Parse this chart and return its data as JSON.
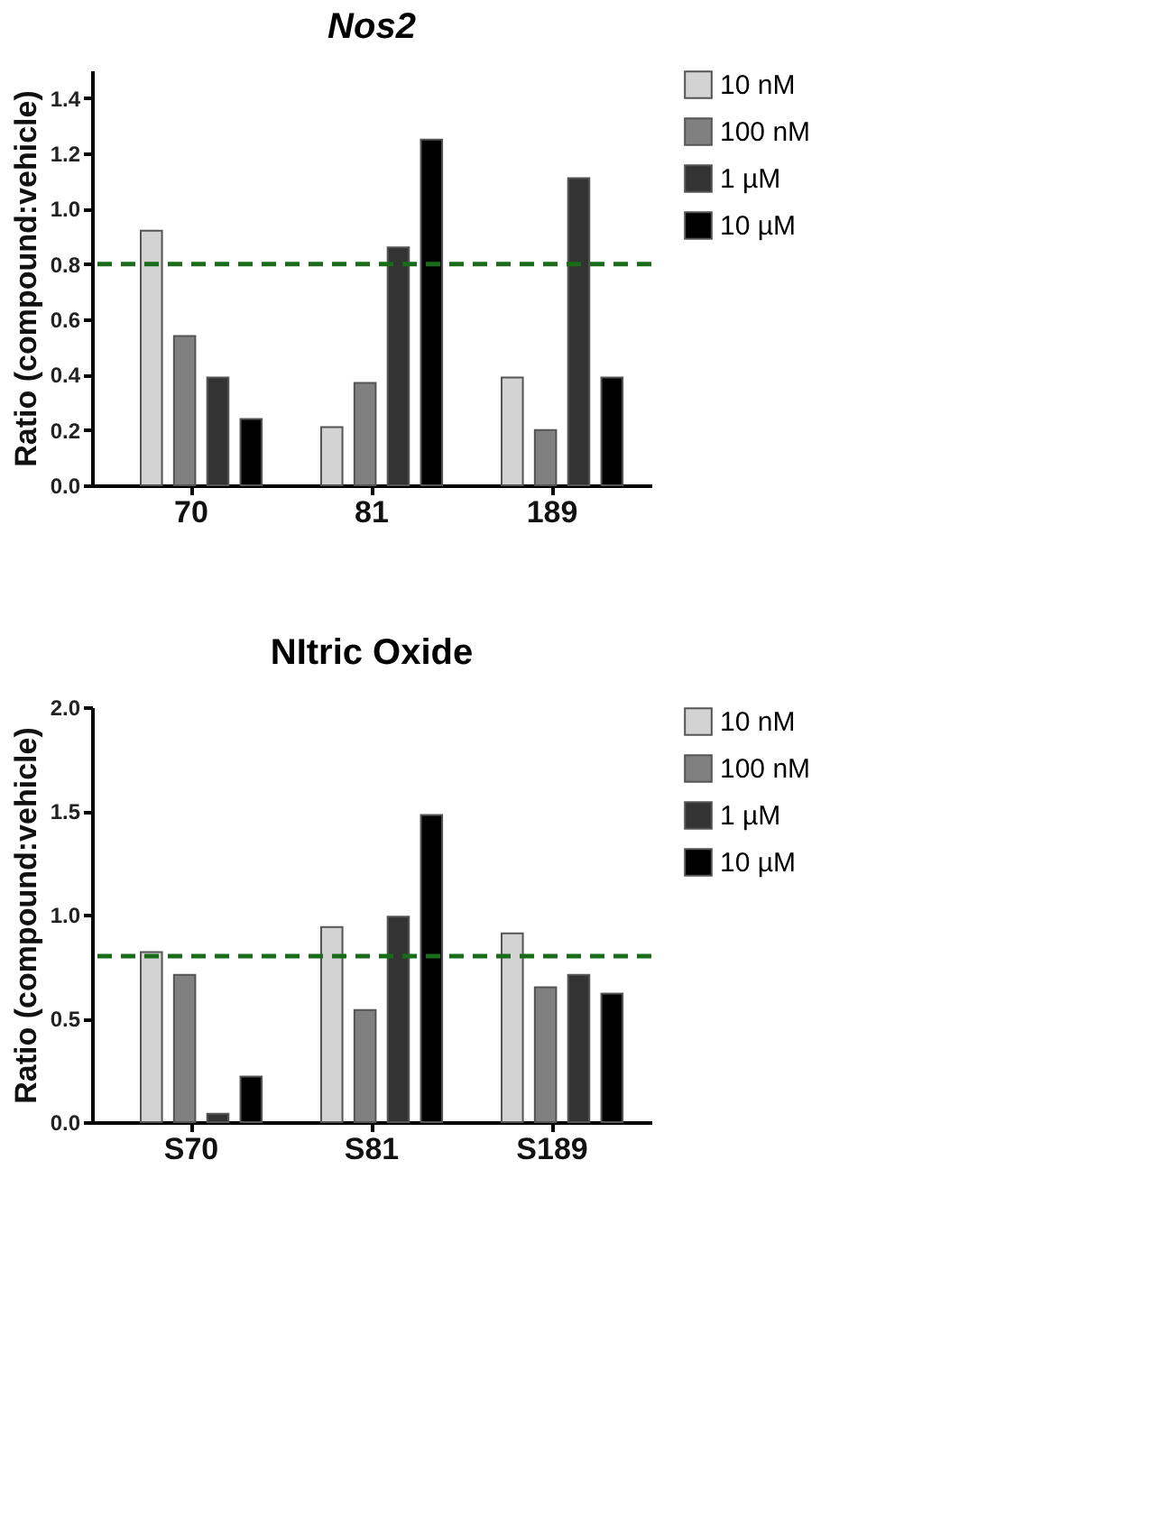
{
  "chart_data": [
    {
      "type": "bar",
      "title": "Nos2",
      "ylabel": "Ratio (compound:vehicle)",
      "categories": [
        "70",
        "81",
        "189"
      ],
      "series": [
        {
          "name": "10 nM",
          "color": "#d3d3d3",
          "values": [
            0.92,
            0.21,
            0.39
          ]
        },
        {
          "name": "100 nM",
          "color": "#808080",
          "values": [
            0.54,
            0.37,
            0.2
          ]
        },
        {
          "name": "1 µM",
          "color": "#333333",
          "values": [
            0.39,
            0.86,
            1.11
          ]
        },
        {
          "name": "10 µM",
          "color": "#000000",
          "values": [
            0.24,
            1.25,
            0.39
          ]
        }
      ],
      "ylim": [
        0,
        1.5
      ],
      "yticks": [
        {
          "value": 0,
          "label": "0.0"
        },
        0.2,
        0.4,
        0.6,
        0.8,
        {
          "value": 1,
          "label": "1.0"
        },
        1.2,
        1.4
      ],
      "ref_lines": [
        {
          "axis": "y",
          "value": 0.8,
          "color": "#1a6b1a",
          "line_style": "dashed"
        }
      ],
      "grid": false,
      "legend": "right"
    },
    {
      "type": "bar",
      "title": "NItric Oxide",
      "ylabel": "Ratio (compound:vehicle)",
      "categories": [
        "S70",
        "S81",
        "S189"
      ],
      "series": [
        {
          "name": "10 nM",
          "color": "#d3d3d3",
          "values": [
            0.82,
            0.94,
            0.91
          ]
        },
        {
          "name": "100 nM",
          "color": "#808080",
          "values": [
            0.71,
            0.54,
            0.65
          ]
        },
        {
          "name": "1 µM",
          "color": "#333333",
          "values": [
            0.04,
            0.99,
            0.71
          ]
        },
        {
          "name": "10 µM",
          "color": "#000000",
          "values": [
            0.22,
            1.48,
            0.62
          ]
        }
      ],
      "ylim": [
        0,
        2
      ],
      "yticks": [
        {
          "value": 0,
          "label": "0.0"
        },
        0.5,
        {
          "value": 1,
          "label": "1.0"
        },
        1.5,
        {
          "value": 2,
          "label": "2.0"
        }
      ],
      "ref_lines": [
        {
          "axis": "y",
          "value": 0.8,
          "color": "#1a6b1a",
          "line_style": "dashed"
        }
      ],
      "grid": false,
      "legend": "right"
    }
  ]
}
